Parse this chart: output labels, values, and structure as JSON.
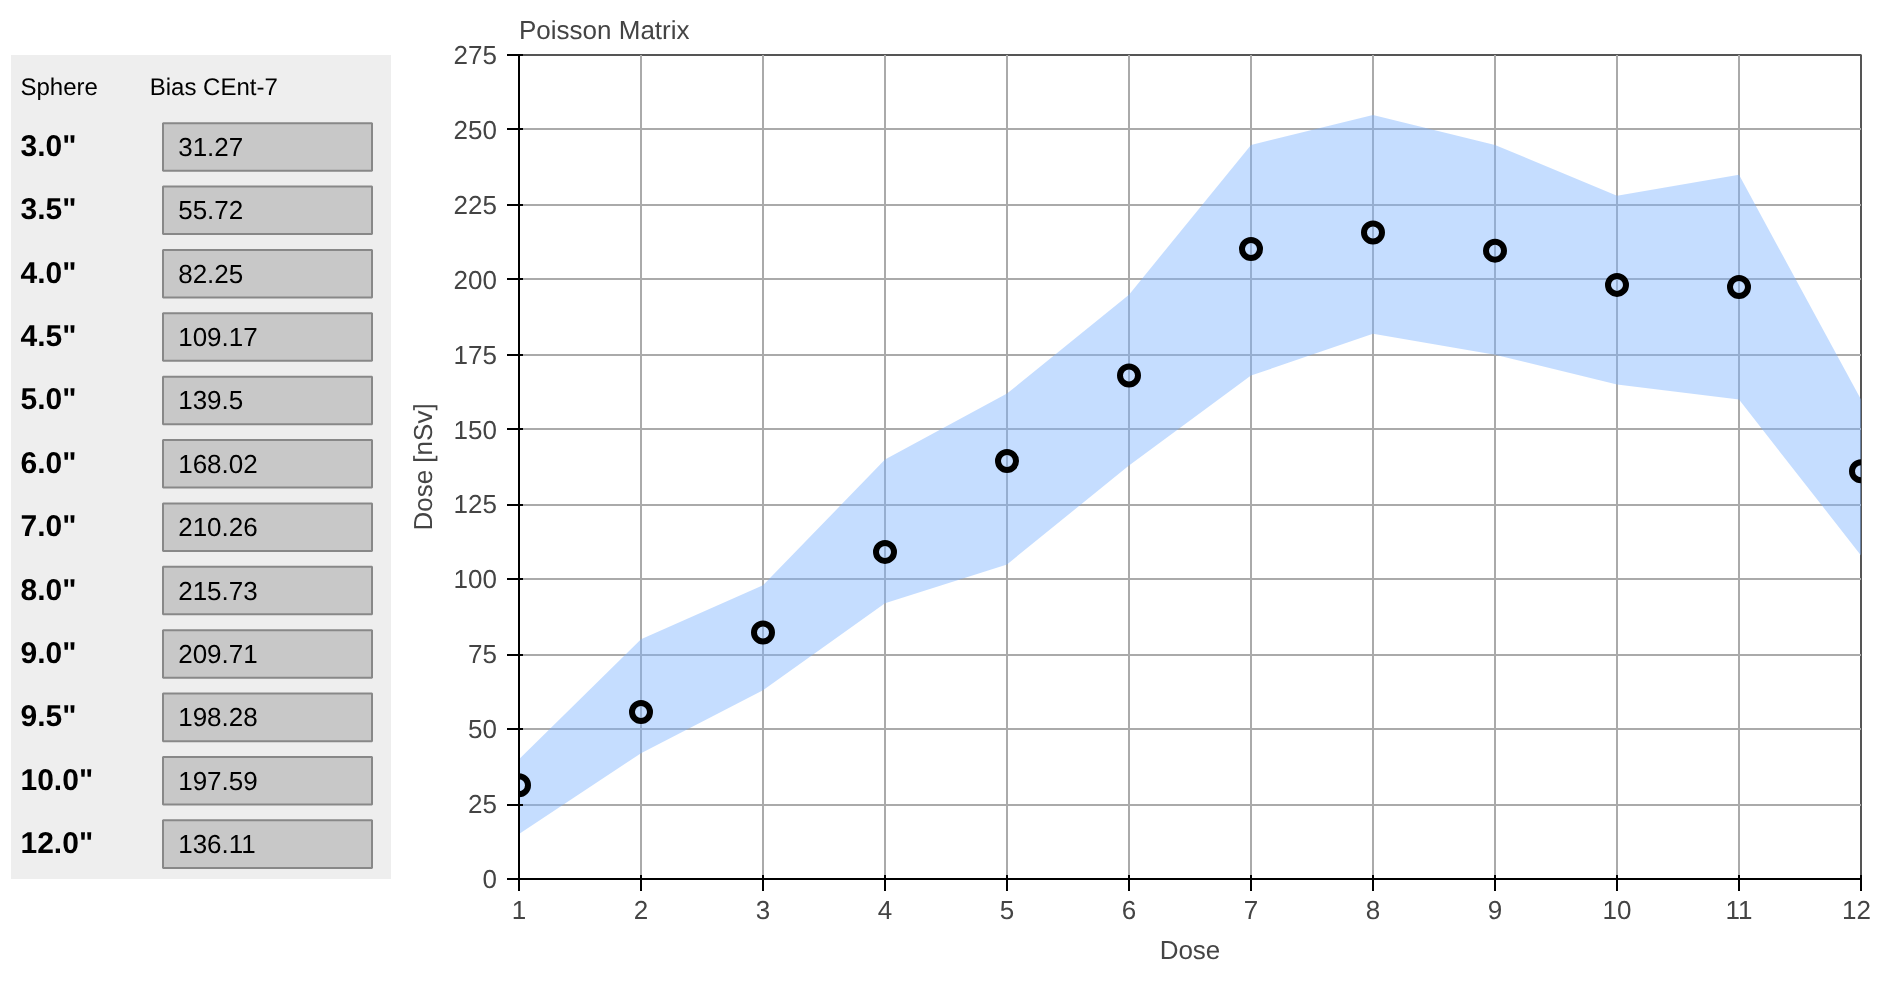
{
  "chart_data": [
    {
      "type": "other",
      "annotations": [
        "Sphere",
        "Bias CEnt-7"
      ],
      "categories": [
        "3.0\"",
        "3.5\"",
        "4.0\"",
        "4.5\"",
        "5.0\"",
        "6.0\"",
        "7.0\"",
        "8.0\"",
        "9.0\"",
        "9.5\"",
        "10.0\"",
        "12.0\""
      ],
      "values": [
        31.27,
        55.72,
        82.25,
        109.17,
        139.5,
        168.02,
        210.26,
        215.73,
        209.71,
        198.28,
        197.59,
        136.11
      ],
      "data_labels": true
    },
    {
      "type": "scatter",
      "title": "Poisson Matrix",
      "xlabel": "Dose",
      "ylabel": "Dose [nSv]",
      "x": [
        1,
        2,
        3,
        4,
        5,
        6,
        7,
        8,
        9,
        10,
        11,
        12
      ],
      "series": [
        {
          "color": "#000000",
          "values": [
            31.27,
            55.72,
            82.25,
            109.17,
            139.5,
            168.02,
            210.26,
            215.73,
            209.71,
            198.28,
            197.59,
            136.11
          ],
          "lower": [
            15,
            42,
            63,
            92,
            105,
            138,
            168,
            182,
            175,
            165,
            160,
            108
          ],
          "upper": [
            40,
            80,
            98,
            140,
            162,
            195,
            245,
            255,
            245,
            228,
            235,
            160
          ]
        }
      ],
      "marker": "circle",
      "grid": true,
      "xlim": [
        1,
        12
      ],
      "ylim": [
        0,
        275
      ],
      "xticks": [
        1,
        2,
        3,
        4,
        5,
        6,
        7,
        8,
        9,
        10,
        11,
        12
      ],
      "yticks": [
        0,
        25,
        50,
        75,
        100,
        125,
        150,
        175,
        200,
        225,
        250,
        275
      ]
    }
  ]
}
